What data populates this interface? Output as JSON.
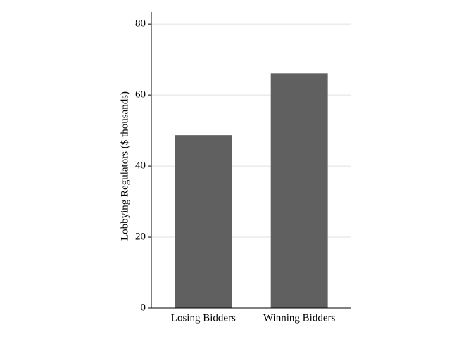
{
  "chart_data": {
    "type": "bar",
    "y_label": "Lobbying Regulators ($ thousands)",
    "categories": [
      "Losing Bidders",
      "Winning Bidders"
    ],
    "values": [
      48.7,
      66.1
    ],
    "color": "#606060",
    "ylim": [
      0,
      83.4
    ],
    "yticks": [
      0,
      20,
      40,
      60,
      80
    ],
    "grid": true
  }
}
